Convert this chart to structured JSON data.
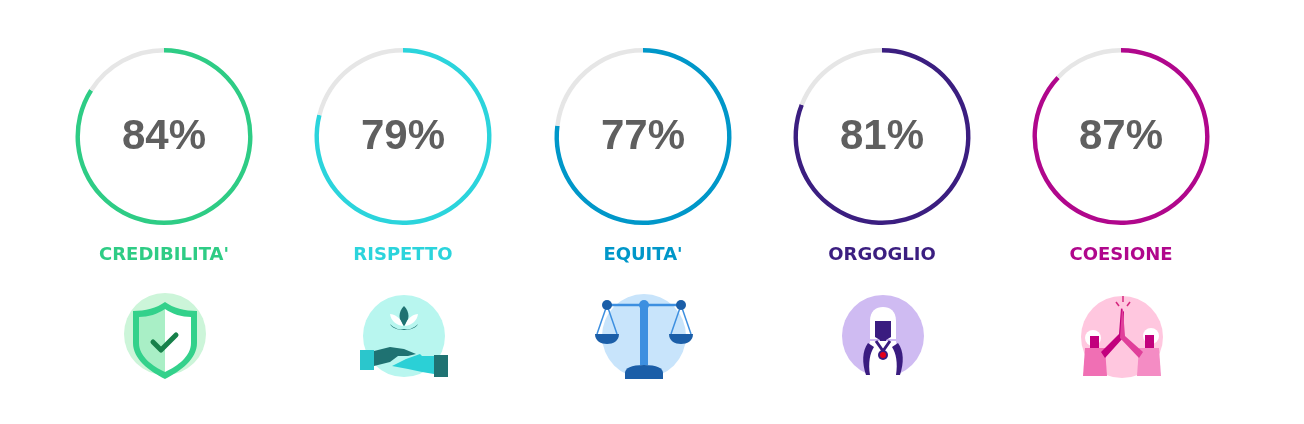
{
  "chart_data": [
    {
      "type": "donut",
      "title": "CREDIBILITA'",
      "categories": [
        null,
        null
      ],
      "values": [
        84,
        16
      ],
      "colors": [
        "#2ecc85",
        "#e6e6e6"
      ],
      "value_labels": [
        "84%",
        null
      ]
    },
    {
      "type": "donut",
      "title": "RISPETTO",
      "categories": [
        null,
        null
      ],
      "values": [
        79,
        21
      ],
      "colors": [
        "#2bd4dc",
        "#e6e6e6"
      ],
      "value_labels": [
        "79%",
        null
      ]
    },
    {
      "type": "donut",
      "title": "EQUITA'",
      "categories": [
        null,
        null
      ],
      "values": [
        77,
        23
      ],
      "colors": [
        "#0097c9",
        "#e6e6e6"
      ],
      "value_labels": [
        "77%",
        null
      ]
    },
    {
      "type": "donut",
      "title": "ORGOGLIO",
      "categories": [
        null,
        null
      ],
      "values": [
        81,
        19
      ],
      "colors": [
        "#3b1e80",
        "#e6e6e6"
      ],
      "value_labels": [
        "81%",
        null
      ]
    },
    {
      "type": "donut",
      "title": "COESIONE",
      "categories": [
        null,
        null
      ],
      "values": [
        87,
        13
      ],
      "colors": [
        "#b0078c",
        "#e6e6e6"
      ],
      "value_labels": [
        "87%",
        null
      ]
    }
  ]
}
